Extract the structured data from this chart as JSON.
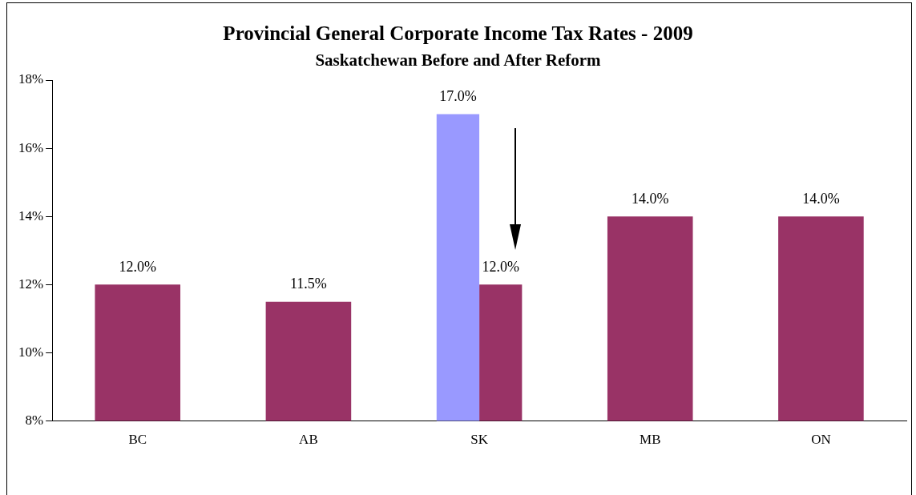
{
  "chart_data": {
    "type": "bar",
    "title": "Provincial General Corporate Income Tax Rates - 2009",
    "subtitle": "Saskatchewan Before and After Reform",
    "categories": [
      "BC",
      "AB",
      "SK",
      "MB",
      "ON"
    ],
    "series": [
      {
        "color": "#9999ff",
        "values": [
          null,
          null,
          17.0,
          null,
          null
        ],
        "value_labels": [
          null,
          null,
          "17.0%",
          null,
          null
        ]
      },
      {
        "color": "#993366",
        "values": [
          12.0,
          11.5,
          12.0,
          14.0,
          14.0
        ],
        "value_labels": [
          "12.0%",
          "11.5%",
          "12.0%",
          "14.0%",
          "14.0%"
        ]
      }
    ],
    "ylim": [
      8,
      18
    ],
    "yticks": [
      {
        "value": 8,
        "label": "8%"
      },
      {
        "value": 10,
        "label": "10%"
      },
      {
        "value": 12,
        "label": "12%"
      },
      {
        "value": 14,
        "label": "14%"
      },
      {
        "value": 16,
        "label": "16%"
      },
      {
        "value": 18,
        "label": "18%"
      }
    ],
    "grid": false,
    "legend": false
  }
}
